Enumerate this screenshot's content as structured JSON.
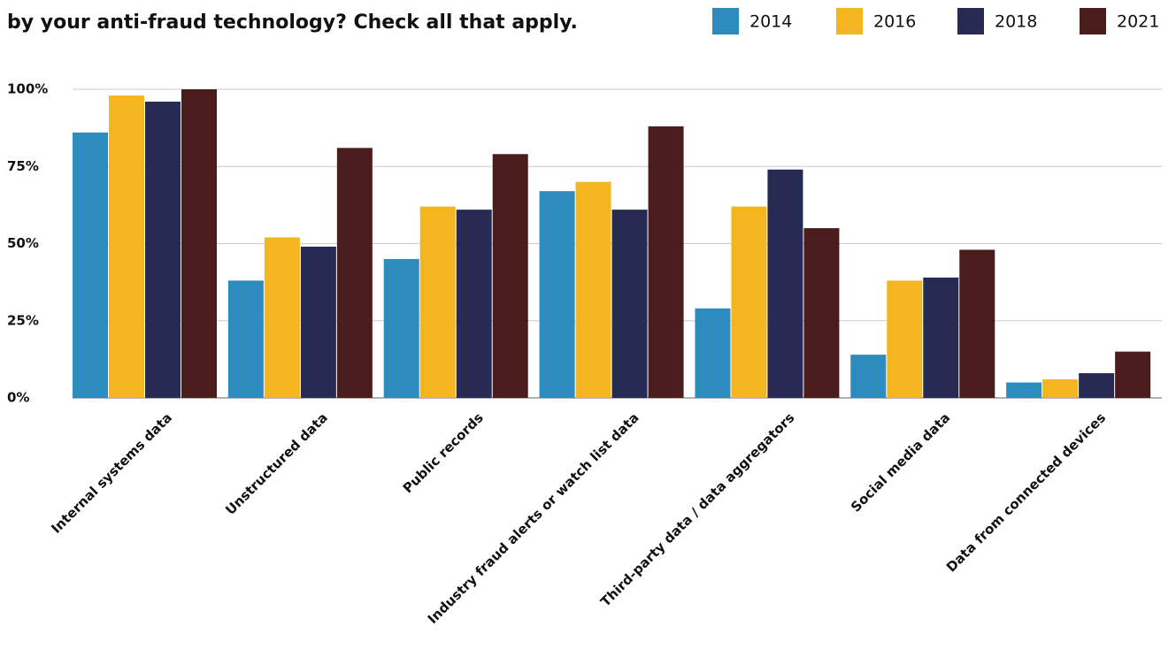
{
  "chart_data": {
    "type": "bar",
    "title": "by your anti-fraud technology? Check all that apply.",
    "categories": [
      "Internal systems data",
      "Unstructured data",
      "Public records",
      "Industry fraud alerts or watch list data",
      "Third-party data / data aggregators",
      "Social media data",
      "Data from connected devices"
    ],
    "series": [
      {
        "name": "2014",
        "color": "#2e8bbd",
        "values": [
          86,
          38,
          45,
          67,
          29,
          14,
          5
        ]
      },
      {
        "name": "2016",
        "color": "#f3b61f",
        "values": [
          98,
          52,
          62,
          70,
          62,
          38,
          6
        ]
      },
      {
        "name": "2018",
        "color": "#272a52",
        "values": [
          96,
          49,
          61,
          61,
          74,
          39,
          8
        ]
      },
      {
        "name": "2021",
        "color": "#4a1c1c",
        "values": [
          100,
          81,
          79,
          88,
          55,
          48,
          15
        ]
      }
    ],
    "ylim": [
      0,
      100
    ],
    "yticks": [
      {
        "value": 0,
        "label": "0%"
      },
      {
        "value": 25,
        "label": "25%"
      },
      {
        "value": 50,
        "label": "50%"
      },
      {
        "value": 75,
        "label": "75%"
      },
      {
        "value": 100,
        "label": "100%"
      }
    ],
    "grid": true
  }
}
